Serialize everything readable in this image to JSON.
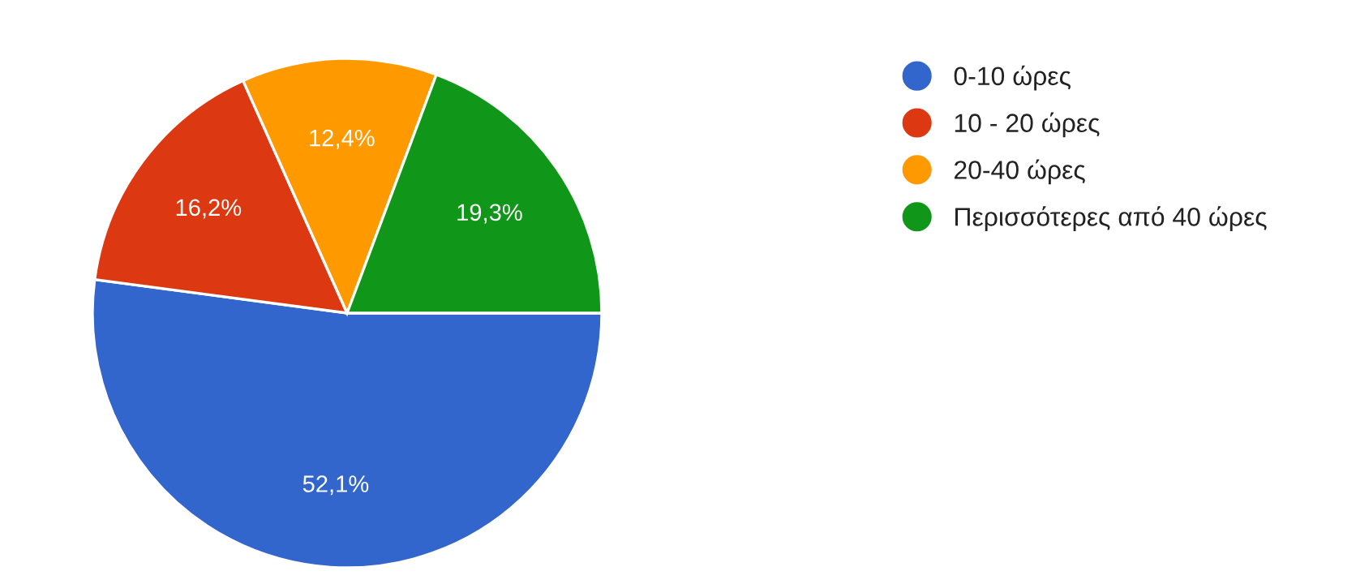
{
  "chart_data": {
    "type": "pie",
    "categories": [
      "0-10 ώρες",
      "10 - 20 ώρες",
      "20-40 ώρες",
      "Περισσότερες από 40 ώρες"
    ],
    "values": [
      52.1,
      16.2,
      12.4,
      19.3
    ],
    "colors": [
      "#3366cc",
      "#dc3912",
      "#ff9900",
      "#109618"
    ],
    "value_labels": [
      "52,1%",
      "16,2%",
      "12,4%",
      "19,3%"
    ],
    "legend": "right"
  }
}
